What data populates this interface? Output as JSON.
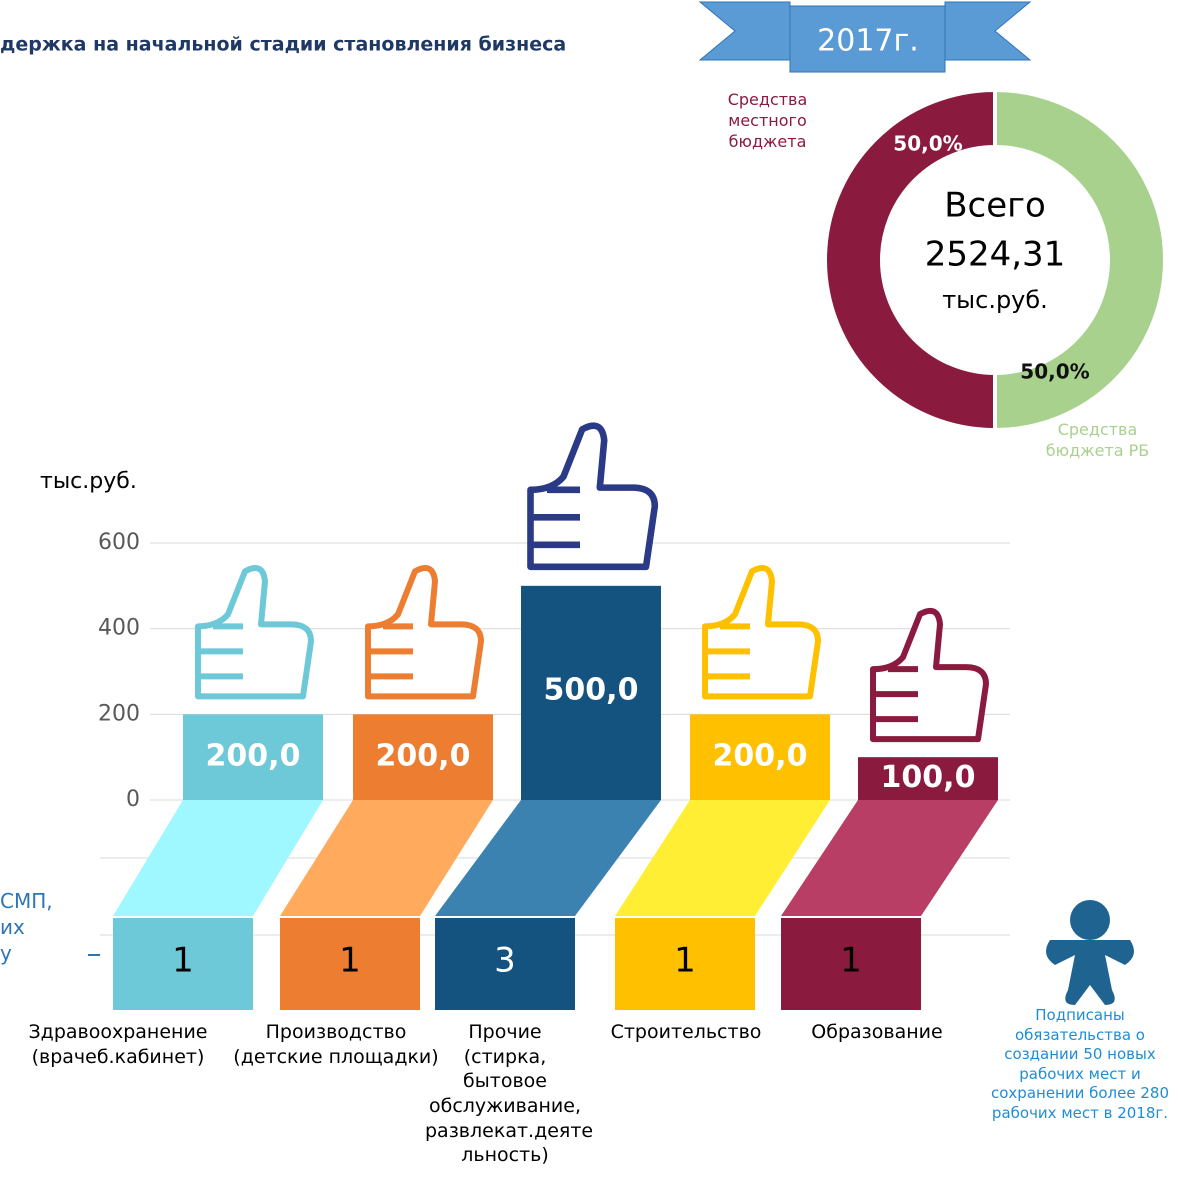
{
  "title": "держка на начальной стадии становления бизнеса",
  "year_banner": "2017г.",
  "side_note": "СМП,\nих\nу",
  "footnote": "Подписаны\nобязательства о\nсоздании 50 новых\nрабочих мест и\nсохранении более 280\nрабочих мест в 2018г.",
  "chart_data": [
    {
      "type": "bar",
      "y_label": "тыс.руб.",
      "categories": [
        "Здравоохранение\n(врачеб.кабинет)",
        "Производство\n(детские площадки)",
        "Прочие\n(стирка,\nбытовое\nобслуживание,\nразвлекат.деяте\nльность)",
        "Строительство",
        "Образование"
      ],
      "values": [
        200,
        200,
        500,
        200,
        100
      ],
      "value_labels": [
        "200,0",
        "200,0",
        "500,0",
        "200,0",
        "100,0"
      ],
      "colors": [
        "#6dc8d8",
        "#ed7d31",
        "#145380",
        "#ffc000",
        "#8b1a3f"
      ],
      "counts": [
        1,
        1,
        3,
        1,
        1
      ],
      "ylim": [
        0,
        600
      ],
      "yticks": [
        0,
        200,
        400,
        600
      ],
      "grid": true
    },
    {
      "type": "donut",
      "center_text": [
        "Всего",
        "2524,31",
        "тыс.руб."
      ],
      "categories": [
        "Средства\nместного\nбюджета",
        "Средства\nбюджета РБ"
      ],
      "values": [
        50,
        50
      ],
      "value_labels": [
        "50,0%",
        "50,0%"
      ],
      "colors": [
        "#8b1a3f",
        "#a9d18e"
      ]
    }
  ]
}
